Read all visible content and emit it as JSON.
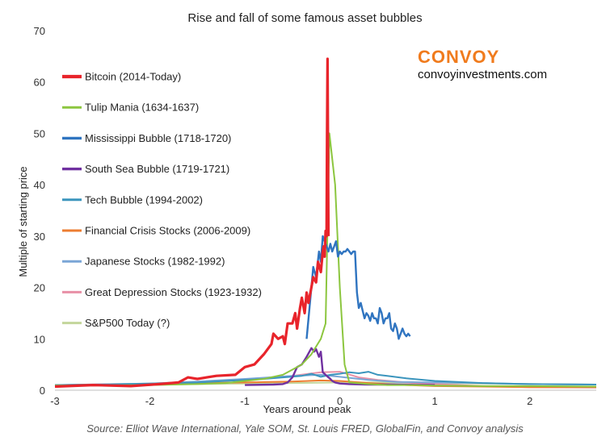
{
  "brand": {
    "name": "CONVOY",
    "url": "convoyinvestments.com",
    "color": "#f07b1d"
  },
  "source": "Source: Elliot Wave International, Yale SOM, St. Louis FRED, GlobalFin, and Convoy analysis",
  "chart_data": {
    "type": "line",
    "title": "Rise and fall of some famous asset bubbles",
    "xlabel": "Years around peak",
    "ylabel": "Multiple of starting price",
    "xlim": [
      -3,
      2.7
    ],
    "ylim": [
      0,
      70
    ],
    "xticks": [
      -3,
      -2,
      -1,
      0,
      1,
      2
    ],
    "yticks": [
      0,
      10,
      20,
      30,
      40,
      50,
      60,
      70
    ],
    "grid": false,
    "legend_position": "top-left",
    "series": [
      {
        "name": "Bitcoin (2014-Today)",
        "color": "#e8242b",
        "width": 3.2,
        "x": [
          -3,
          -2.6,
          -2.2,
          -1.9,
          -1.7,
          -1.6,
          -1.5,
          -1.3,
          -1.1,
          -1.0,
          -0.9,
          -0.8,
          -0.72,
          -0.7,
          -0.65,
          -0.6,
          -0.58,
          -0.55,
          -0.5,
          -0.47,
          -0.45,
          -0.42,
          -0.4,
          -0.37,
          -0.35,
          -0.33,
          -0.3,
          -0.28,
          -0.25,
          -0.23,
          -0.2,
          -0.18,
          -0.17,
          -0.16,
          -0.15,
          -0.14,
          -0.135,
          -0.13,
          -0.12
        ],
        "y": [
          0.7,
          1,
          0.8,
          1.2,
          1.5,
          2.5,
          2.2,
          2.8,
          3,
          4.5,
          5,
          7,
          9,
          11,
          10,
          10.5,
          9,
          13,
          13,
          15,
          12,
          16,
          18,
          15,
          19,
          17,
          20,
          22,
          21,
          25,
          23,
          27,
          28,
          26,
          31,
          30,
          50,
          64.5,
          30
        ]
      },
      {
        "name": "Tulip Mania (1634-1637)",
        "color": "#8cc63f",
        "width": 2,
        "x": [
          -3,
          -2,
          -1.5,
          -1.2,
          -1.0,
          -0.8,
          -0.6,
          -0.5,
          -0.4,
          -0.3,
          -0.2,
          -0.15,
          -0.11,
          -0.05,
          0.0,
          0.05,
          0.1,
          0.3,
          0.5,
          0.8,
          1.0,
          1.5,
          2,
          2.7
        ],
        "y": [
          0.9,
          1,
          1.2,
          1.4,
          1.8,
          2.2,
          3,
          4,
          5,
          7,
          10,
          13,
          50,
          40,
          20,
          5,
          1.5,
          1.2,
          1,
          1,
          0.9,
          0.8,
          0.8,
          0.7
        ]
      },
      {
        "name": "Mississippi Bubble (1718-1720)",
        "color": "#2f74c0",
        "width": 2.4,
        "x": [
          -0.35,
          -0.3,
          -0.28,
          -0.25,
          -0.22,
          -0.2,
          -0.18,
          -0.16,
          -0.14,
          -0.12,
          -0.1,
          -0.08,
          -0.06,
          -0.04,
          -0.02,
          0.0,
          0.02,
          0.04,
          0.06,
          0.08,
          0.1,
          0.12,
          0.14,
          0.16,
          0.18,
          0.2,
          0.22,
          0.24,
          0.26,
          0.28,
          0.3,
          0.32,
          0.34,
          0.36,
          0.38,
          0.4,
          0.42,
          0.44,
          0.46,
          0.48,
          0.5,
          0.52,
          0.54,
          0.56,
          0.58,
          0.6,
          0.62,
          0.64,
          0.66,
          0.68,
          0.7,
          0.72,
          0.74
        ],
        "y": [
          10,
          20,
          24,
          22,
          27,
          25,
          30,
          29,
          28,
          27,
          28.5,
          27,
          28,
          29,
          26,
          27,
          26.5,
          27,
          27,
          27.5,
          27,
          26.5,
          27,
          27,
          19,
          16,
          17,
          15.5,
          14,
          15,
          14.5,
          13.5,
          15,
          14,
          14,
          13,
          16,
          15,
          13,
          14,
          14,
          15,
          12,
          11.5,
          13,
          12,
          10,
          11,
          12,
          11,
          10.5,
          11,
          10.5
        ]
      },
      {
        "name": "South Sea Bubble (1719-1721)",
        "color": "#7030a0",
        "width": 2.4,
        "x": [
          -1.0,
          -0.7,
          -0.6,
          -0.55,
          -0.5,
          -0.45,
          -0.4,
          -0.35,
          -0.3,
          -0.27,
          -0.25,
          -0.22,
          -0.2,
          -0.18,
          -0.15,
          -0.12,
          -0.1,
          -0.08,
          -0.05,
          0.0,
          0.1,
          0.3,
          0.6,
          1.0
        ],
        "y": [
          1,
          1.1,
          1.2,
          1.5,
          2.5,
          4.5,
          5,
          6.5,
          8.2,
          7.5,
          8,
          6.5,
          7.5,
          3.5,
          3,
          2.5,
          2.2,
          1.8,
          1.5,
          1.3,
          1.2,
          1.1,
          1.1,
          1.0
        ]
      },
      {
        "name": "Tech Bubble (1994-2002)",
        "color": "#3b95bd",
        "width": 2,
        "x": [
          -3,
          -2.5,
          -2,
          -1.5,
          -1.2,
          -1.0,
          -0.8,
          -0.6,
          -0.4,
          -0.3,
          -0.2,
          -0.1,
          0.0,
          0.1,
          0.2,
          0.3,
          0.4,
          0.5,
          0.7,
          1.0,
          1.5,
          2.0,
          2.7
        ],
        "y": [
          1,
          1.1,
          1.3,
          1.5,
          1.8,
          2,
          2.2,
          2.5,
          2.8,
          3.2,
          2.6,
          3,
          3.2,
          3.5,
          3.3,
          3.6,
          3,
          2.8,
          2.3,
          1.8,
          1.4,
          1.2,
          1.1
        ]
      },
      {
        "name": "Financial Crisis Stocks (2006-2009)",
        "color": "#ed7d31",
        "width": 2,
        "x": [
          -3,
          -2,
          -1.5,
          -1,
          -0.5,
          -0.2,
          0,
          0.3,
          0.7,
          1,
          1.5,
          2,
          2.7
        ],
        "y": [
          1,
          1.2,
          1.4,
          1.5,
          1.7,
          1.9,
          1.8,
          1.4,
          1.0,
          0.8,
          0.7,
          0.6,
          0.6
        ]
      },
      {
        "name": "Japanese Stocks (1982-1992)",
        "color": "#7aa6d6",
        "width": 2,
        "x": [
          -3,
          -2,
          -1.5,
          -1,
          -0.5,
          -0.2,
          0,
          0.3,
          0.6,
          1,
          1.5,
          2,
          2.7
        ],
        "y": [
          1,
          1.3,
          1.7,
          2.2,
          2.8,
          3.0,
          2.6,
          2.0,
          1.6,
          1.5,
          1.4,
          1.2,
          1.1
        ]
      },
      {
        "name": "Great Depression Stocks (1923-1932)",
        "color": "#e890a6",
        "width": 2,
        "x": [
          -3,
          -2,
          -1.5,
          -1,
          -0.5,
          -0.2,
          0,
          0.2,
          0.4,
          0.7,
          1,
          1.5,
          2,
          2.7
        ],
        "y": [
          1,
          1.3,
          1.6,
          2.0,
          2.8,
          3.5,
          3.6,
          2.5,
          2.0,
          1.5,
          1.2,
          0.8,
          0.6,
          0.5
        ]
      },
      {
        "name": "S&P500 Today (?)",
        "color": "#c3d69b",
        "width": 2,
        "x": [
          -3,
          -2,
          -1,
          -0.5,
          0,
          0.5,
          1,
          1.5,
          2,
          2.7
        ],
        "y": [
          1,
          1.1,
          1.3,
          1.4,
          1.5,
          1.5,
          1.4,
          1.3,
          1.2,
          1.1
        ]
      }
    ]
  }
}
